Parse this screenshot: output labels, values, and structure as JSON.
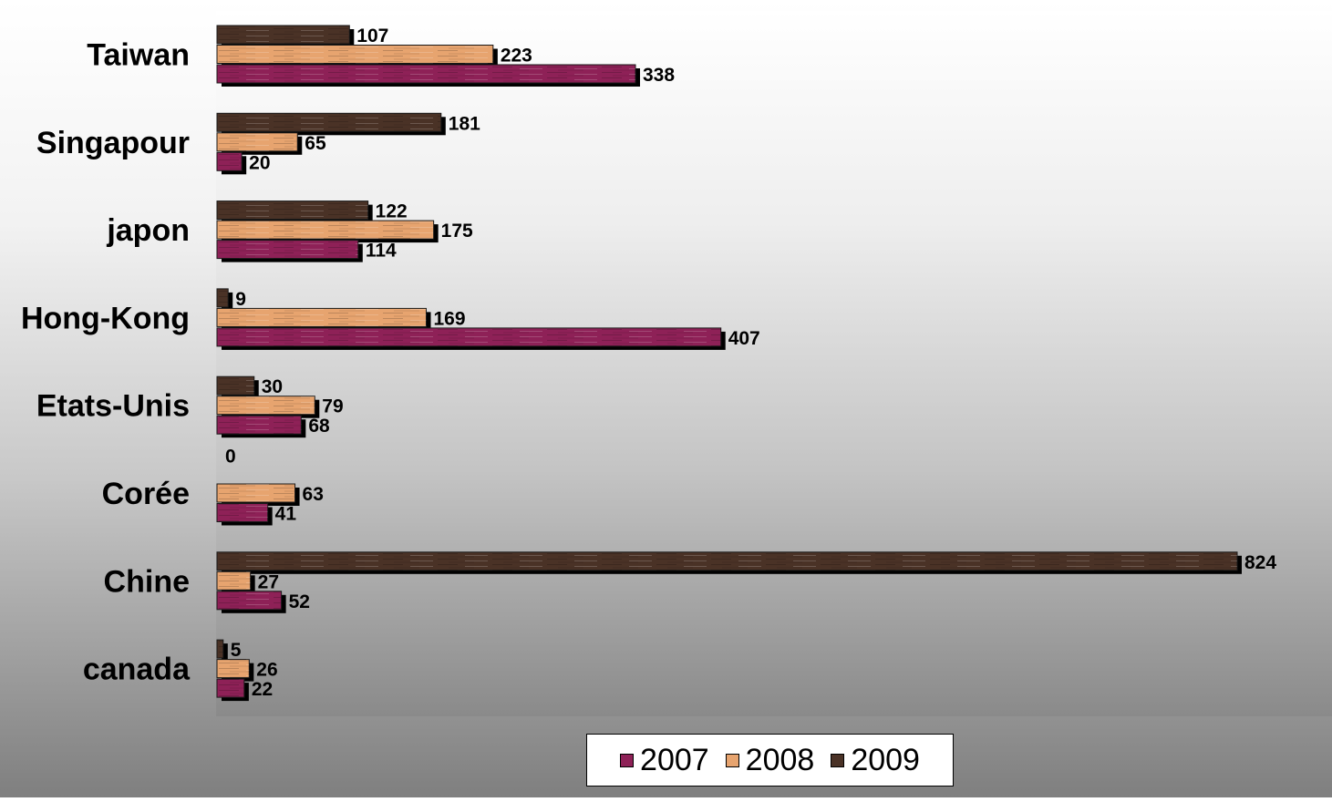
{
  "chart_data": {
    "type": "bar",
    "orientation": "horizontal",
    "categories": [
      "Taiwan",
      "Singapour",
      "japon",
      "Hong-Kong",
      "Etats-Unis",
      "Corée",
      "Chine",
      "canada"
    ],
    "series": [
      {
        "name": "2007",
        "color": "#8e2157",
        "values": [
          338,
          20,
          114,
          407,
          68,
          41,
          52,
          22
        ]
      },
      {
        "name": "2008",
        "color": "#e7a46f",
        "values": [
          223,
          65,
          175,
          169,
          79,
          63,
          27,
          26
        ]
      },
      {
        "name": "2009",
        "color": "#4a3226",
        "values": [
          107,
          181,
          122,
          9,
          30,
          0,
          824,
          5
        ]
      }
    ],
    "xlim": [
      0,
      824
    ],
    "grid": false,
    "data_labels": true,
    "legend_position": "bottom"
  }
}
